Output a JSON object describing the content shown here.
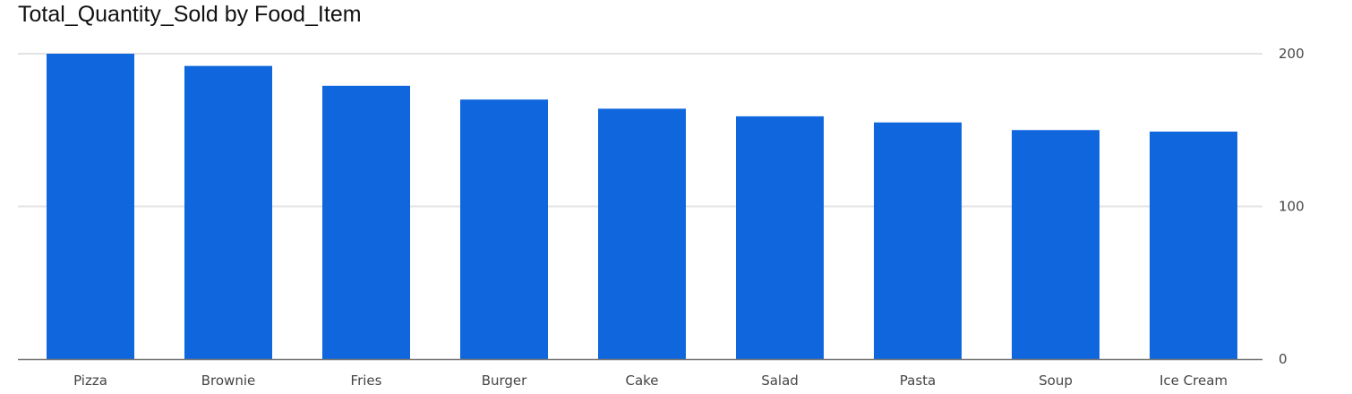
{
  "chart_data": {
    "type": "bar",
    "title": "Total_Quantity_Sold by Food_Item",
    "xlabel": "",
    "ylabel": "",
    "categories": [
      "Pizza",
      "Brownie",
      "Fries",
      "Burger",
      "Cake",
      "Salad",
      "Pasta",
      "Soup",
      "Ice Cream"
    ],
    "values": [
      200,
      192,
      179,
      170,
      164,
      159,
      155,
      150,
      149
    ],
    "ylim": [
      0,
      200
    ],
    "yticks": [
      0,
      100,
      200
    ],
    "grid": true,
    "y_axis_side": "right",
    "bar_color": "#1067dd",
    "grid_color": "#e3e3e3",
    "axis_color": "#777777"
  }
}
